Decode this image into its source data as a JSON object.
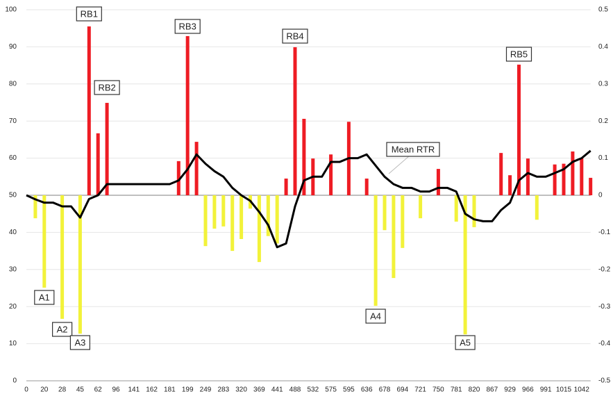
{
  "chart_data": {
    "type": "bar-line",
    "categories": [
      "0",
      null,
      "20",
      null,
      "28",
      null,
      "45",
      null,
      "62",
      null,
      "96",
      null,
      "141",
      null,
      "162",
      null,
      "181",
      null,
      "199",
      null,
      "249",
      null,
      "283",
      null,
      "320",
      null,
      "369",
      null,
      "441",
      null,
      "488",
      null,
      "532",
      null,
      "575",
      null,
      "595",
      null,
      "636",
      null,
      "678",
      null,
      "694",
      null,
      "721",
      null,
      "750",
      null,
      "781",
      null,
      "820",
      null,
      "867",
      null,
      "929",
      null,
      "966",
      null,
      "991",
      null,
      "1015",
      null,
      "1042",
      null
    ],
    "bars": {
      "baseline": 50,
      "up_color": "#ee1c24",
      "down_color": "#f2f23a",
      "values": [
        null,
        43.8,
        25.1,
        null,
        16.7,
        null,
        12.7,
        95.5,
        66.7,
        74.9,
        null,
        null,
        null,
        null,
        null,
        null,
        null,
        59.2,
        92.9,
        64.4,
        36.3,
        41.0,
        41.6,
        35.0,
        38.2,
        46.4,
        32.0,
        39.0,
        37.0,
        54.5,
        89.9,
        70.6,
        59.9,
        null,
        61.0,
        null,
        69.8,
        null,
        54.5,
        20.2,
        40.6,
        27.7,
        35.8,
        null,
        43.8,
        null,
        57.1,
        null,
        42.9,
        12.5,
        41.4,
        null,
        null,
        61.4,
        55.4,
        85.2,
        59.9,
        43.4,
        null,
        58.3,
        58.5,
        61.8,
        60.0,
        54.7
      ]
    },
    "line": {
      "name": "Mean RTR",
      "color": "#000000",
      "axis": "y2",
      "values": [
        0,
        -0.011,
        -0.02,
        -0.02,
        -0.03,
        -0.03,
        -0.06,
        -0.01,
        0,
        0.03,
        0.03,
        0.03,
        0.03,
        0.03,
        0.03,
        0.03,
        0.03,
        0.04,
        0.07,
        0.11,
        0.085,
        0.065,
        0.05,
        0.02,
        0,
        -0.015,
        -0.045,
        -0.08,
        -0.14,
        -0.13,
        -0.03,
        0.04,
        0.05,
        0.05,
        0.09,
        0.09,
        0.1,
        0.1,
        0.11,
        0.08,
        0.05,
        0.03,
        0.02,
        0.02,
        0.01,
        0.01,
        0.02,
        0.02,
        0.01,
        -0.05,
        -0.065,
        -0.07,
        -0.07,
        -0.04,
        -0.02,
        0.04,
        0.06,
        0.05,
        0.05,
        0.06,
        0.07,
        0.09,
        0.1,
        0.12
      ]
    },
    "annotations": [
      "RB1",
      "RB2",
      "RB3",
      "RB4",
      "RB5",
      "A1",
      "A2",
      "A3",
      "A4",
      "A5"
    ],
    "ylim": [
      0,
      100
    ],
    "yticks": [
      0,
      10,
      20,
      30,
      40,
      50,
      60,
      70,
      80,
      90,
      100
    ],
    "y2lim": [
      -0.5,
      0.5
    ],
    "y2ticks": [
      -0.5,
      -0.4,
      -0.3,
      -0.2,
      -0.1,
      0,
      0.1,
      0.2,
      0.3,
      0.4,
      0.5
    ],
    "grid": true
  }
}
